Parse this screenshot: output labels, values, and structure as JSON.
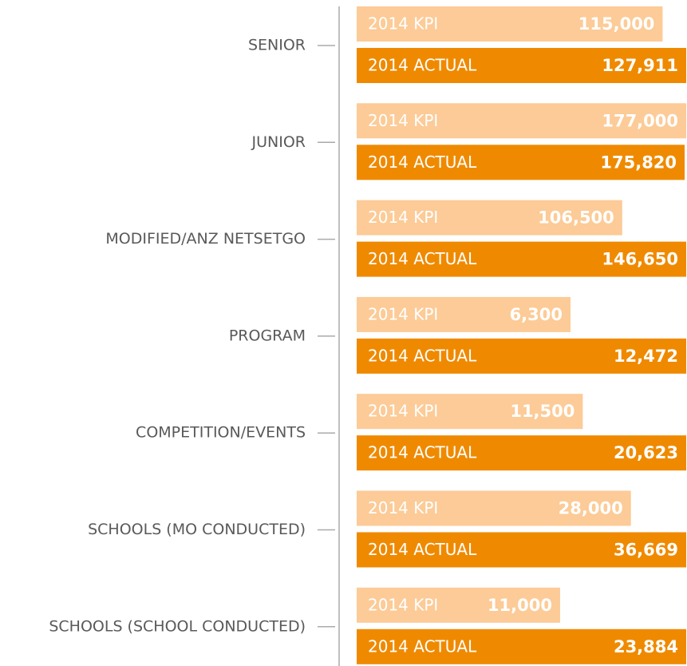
{
  "chart_data": {
    "type": "bar",
    "categories": [
      "SENIOR",
      "JUNIOR",
      "MODIFIED/ANZ NETSETGO",
      "PROGRAM",
      "COMPETITION/EVENTS",
      "SCHOOLS (MO CONDUCTED)",
      "SCHOOLS (SCHOOL CONDUCTED)"
    ],
    "series": [
      {
        "name": "2014 KPI",
        "color": "#fccb97",
        "values": [
          115000,
          177000,
          106500,
          6300,
          11500,
          28000,
          11000
        ],
        "value_labels": [
          "115,000",
          "177,000",
          "106,500",
          "6,300",
          "11,500",
          "28,000",
          "11,000"
        ]
      },
      {
        "name": "2014 ACTUAL",
        "color": "#ef8a00",
        "values": [
          127911,
          175820,
          146650,
          12472,
          20623,
          36669,
          23884
        ],
        "value_labels": [
          "127,911",
          "175,820",
          "146,650",
          "12,472",
          "20,623",
          "36,669",
          "23,884"
        ]
      }
    ]
  }
}
